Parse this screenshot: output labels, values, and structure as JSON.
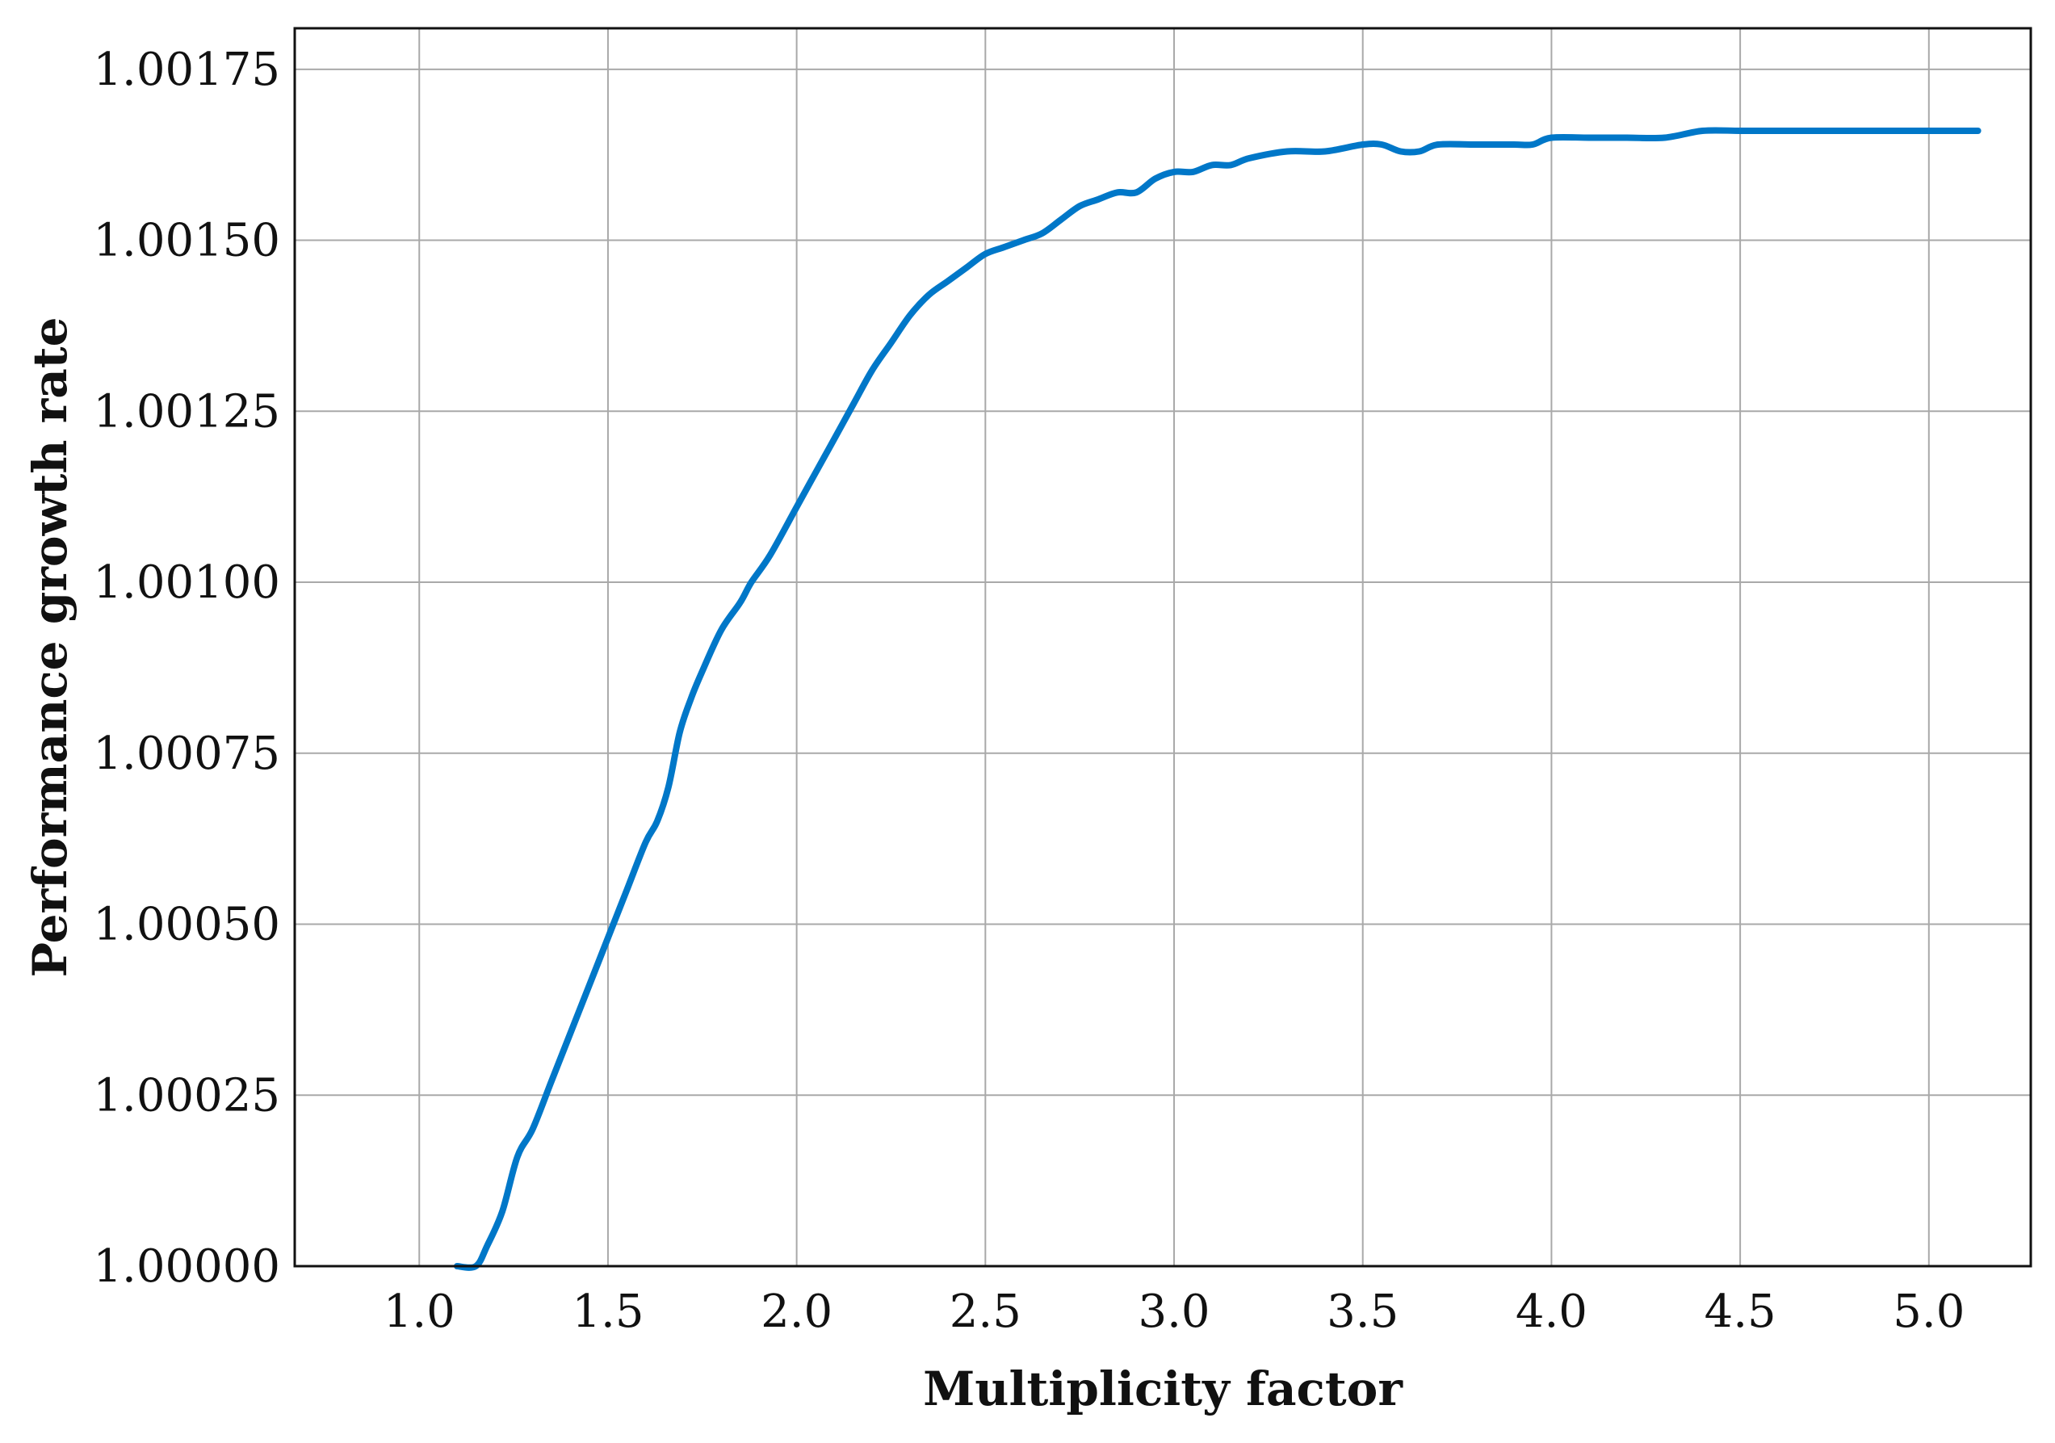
{
  "chart_data": {
    "type": "line",
    "title": "",
    "xlabel": "Multiplicity factor",
    "ylabel": "Performance growth rate",
    "xlim": [
      0.67,
      5.27
    ],
    "ylim": [
      1.0,
      1.00181
    ],
    "xticks": [
      1.0,
      1.5,
      2.0,
      2.5,
      3.0,
      3.5,
      4.0,
      4.5,
      5.0
    ],
    "xtick_labels": [
      "1.0",
      "1.5",
      "2.0",
      "2.5",
      "3.0",
      "3.5",
      "4.0",
      "4.5",
      "5.0"
    ],
    "yticks": [
      1.0,
      1.00025,
      1.0005,
      1.00075,
      1.001,
      1.00125,
      1.0015,
      1.00175
    ],
    "ytick_labels": [
      "1.00000",
      "1.00025",
      "1.00050",
      "1.00075",
      "1.00100",
      "1.00125",
      "1.00150",
      "1.00175"
    ],
    "grid": true,
    "legend": "none",
    "series": [
      {
        "color": "#0077c8",
        "x": [
          1.1,
          1.15,
          1.18,
          1.22,
          1.26,
          1.3,
          1.35,
          1.4,
          1.45,
          1.5,
          1.55,
          1.6,
          1.63,
          1.66,
          1.69,
          1.72,
          1.75,
          1.8,
          1.85,
          1.88,
          1.93,
          2.0,
          2.05,
          2.1,
          2.15,
          2.2,
          2.25,
          2.3,
          2.35,
          2.4,
          2.45,
          2.5,
          2.55,
          2.6,
          2.65,
          2.7,
          2.75,
          2.8,
          2.85,
          2.9,
          2.95,
          3.0,
          3.05,
          3.1,
          3.15,
          3.2,
          3.3,
          3.4,
          3.5,
          3.55,
          3.6,
          3.65,
          3.7,
          3.8,
          3.9,
          3.95,
          4.0,
          4.1,
          4.2,
          4.3,
          4.4,
          4.5,
          4.6,
          4.7,
          4.8,
          4.9,
          5.0,
          5.1,
          5.13
        ],
        "y": [
          1.0,
          1.0,
          1.00003,
          1.00008,
          1.00016,
          1.0002,
          1.00027,
          1.00034,
          1.00041,
          1.00048,
          1.00055,
          1.00062,
          1.00065,
          1.0007,
          1.00078,
          1.00083,
          1.00087,
          1.00093,
          1.00097,
          1.001,
          1.00104,
          1.00111,
          1.00116,
          1.00121,
          1.00126,
          1.00131,
          1.00135,
          1.00139,
          1.00142,
          1.00144,
          1.00146,
          1.00148,
          1.00149,
          1.0015,
          1.00151,
          1.00153,
          1.00155,
          1.00156,
          1.00157,
          1.00157,
          1.00159,
          1.0016,
          1.0016,
          1.00161,
          1.00161,
          1.00162,
          1.00163,
          1.00163,
          1.00164,
          1.00164,
          1.00163,
          1.00163,
          1.00164,
          1.00164,
          1.00164,
          1.00164,
          1.00165,
          1.00165,
          1.00165,
          1.00165,
          1.00166,
          1.00166,
          1.00166,
          1.00166,
          1.00166,
          1.00166,
          1.00166,
          1.00166,
          1.00166
        ]
      }
    ]
  }
}
